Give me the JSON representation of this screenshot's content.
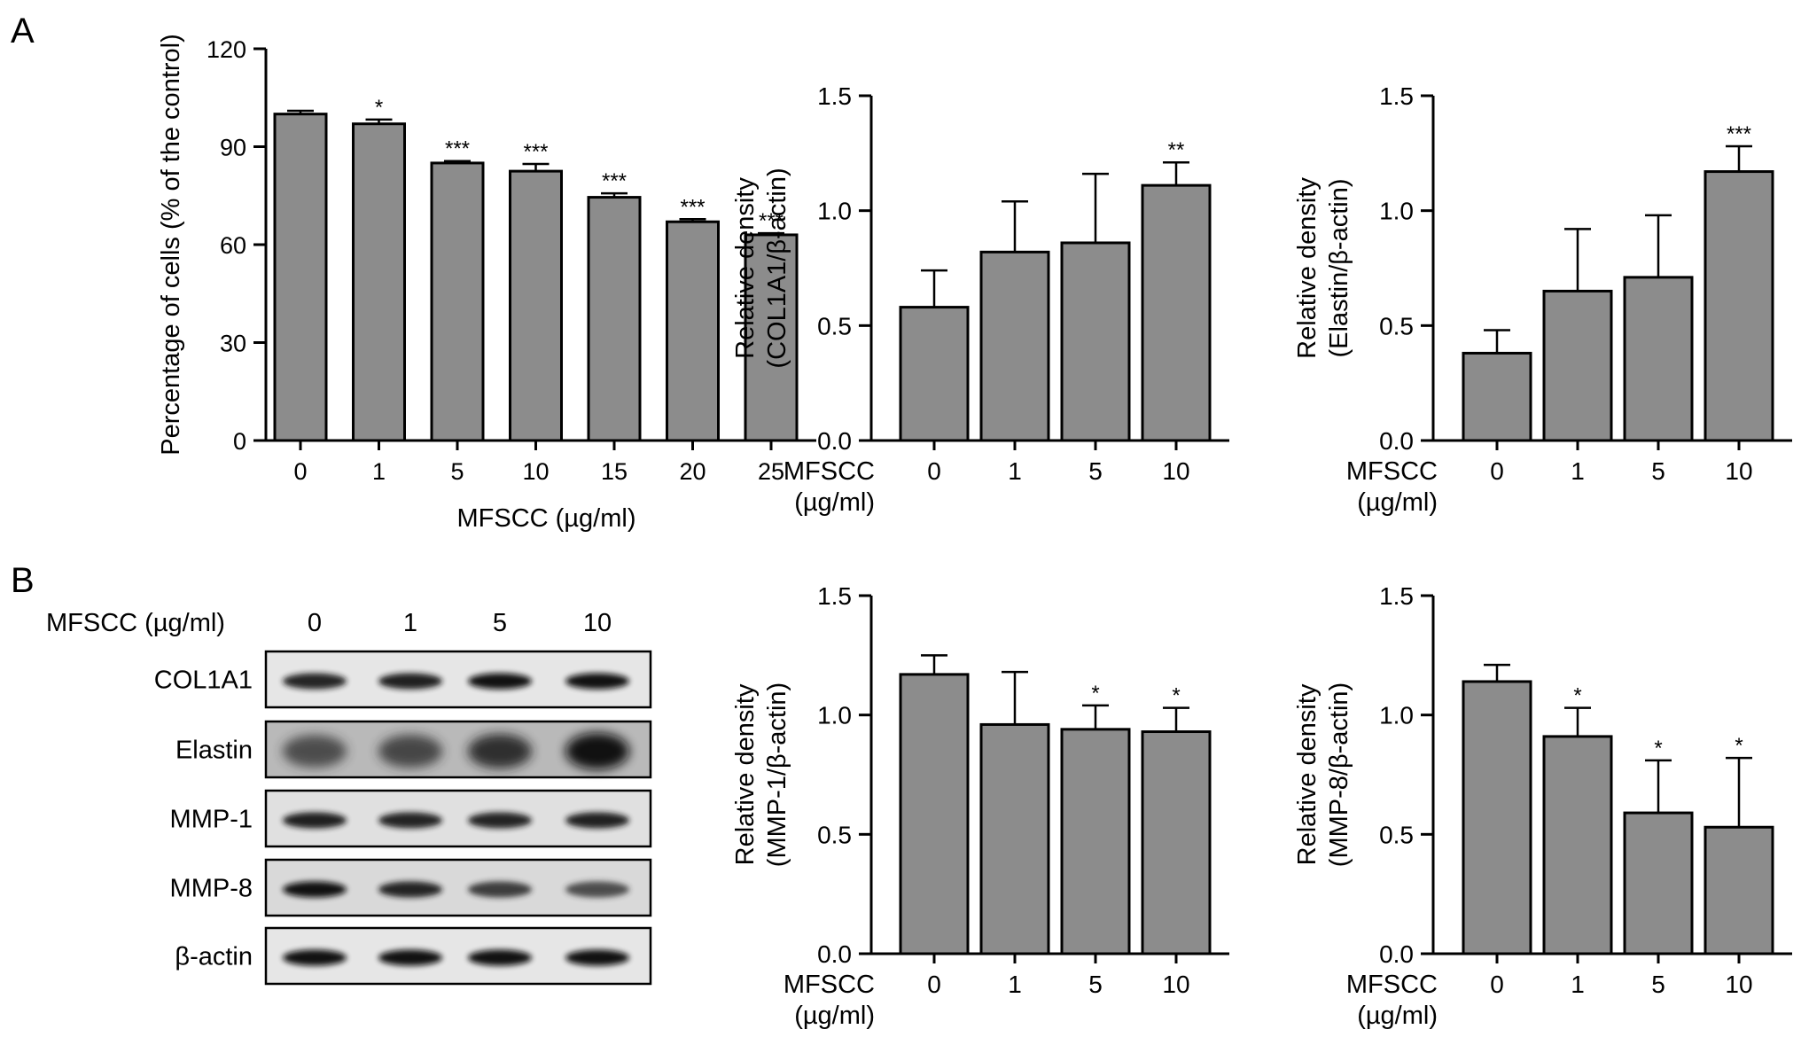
{
  "panel_labels": [
    "A",
    "B"
  ],
  "chart_data": [
    {
      "id": "viability",
      "type": "bar",
      "categories": [
        "0",
        "1",
        "5",
        "10",
        "15",
        "20",
        "25"
      ],
      "values": [
        100,
        97,
        85,
        82.5,
        74.5,
        67,
        63
      ],
      "errors": [
        1,
        1.3,
        0.6,
        2.2,
        1.2,
        0.8,
        0.5
      ],
      "significance": [
        "",
        "*",
        "***",
        "***",
        "***",
        "***",
        "***"
      ],
      "ylabel": "Percentage of cells (% of the control)",
      "xlabel": "MFSCC (µg/ml)",
      "ylim": [
        0,
        120
      ],
      "yticks": [
        0,
        30,
        60,
        90,
        120
      ],
      "bar_color": "#8c8c8c"
    },
    {
      "id": "col1a1",
      "type": "bar",
      "categories": [
        "0",
        "1",
        "5",
        "10"
      ],
      "values": [
        0.58,
        0.82,
        0.86,
        1.11
      ],
      "errors": [
        0.16,
        0.22,
        0.3,
        0.1
      ],
      "significance": [
        "",
        "",
        "",
        "**"
      ],
      "ylabel_lines": [
        "Relative density",
        "(COL1A1/β-actin)"
      ],
      "xlabel_lines": [
        "MFSCC",
        "(µg/ml)"
      ],
      "ylim": [
        0,
        1.5
      ],
      "yticks": [
        "0.0",
        "0.5",
        "1.0",
        "1.5"
      ],
      "bar_color": "#8c8c8c"
    },
    {
      "id": "elastin",
      "type": "bar",
      "categories": [
        "0",
        "1",
        "5",
        "10"
      ],
      "values": [
        0.38,
        0.65,
        0.71,
        1.17
      ],
      "errors": [
        0.1,
        0.27,
        0.27,
        0.11
      ],
      "significance": [
        "",
        "",
        "",
        "***"
      ],
      "ylabel_lines": [
        "Relative density",
        "(Elastin/β-actin)"
      ],
      "xlabel_lines": [
        "MFSCC",
        "(µg/ml)"
      ],
      "ylim": [
        0,
        1.5
      ],
      "yticks": [
        "0.0",
        "0.5",
        "1.0",
        "1.5"
      ],
      "bar_color": "#8c8c8c"
    },
    {
      "id": "mmp1",
      "type": "bar",
      "categories": [
        "0",
        "1",
        "5",
        "10"
      ],
      "values": [
        1.17,
        0.96,
        0.94,
        0.93
      ],
      "errors": [
        0.08,
        0.22,
        0.1,
        0.1
      ],
      "significance": [
        "",
        "",
        "*",
        "*"
      ],
      "ylabel_lines": [
        "Relative density",
        "(MMP-1/β-actin)"
      ],
      "xlabel_lines": [
        "MFSCC",
        "(µg/ml)"
      ],
      "ylim": [
        0,
        1.5
      ],
      "yticks": [
        "0.0",
        "0.5",
        "1.0",
        "1.5"
      ],
      "bar_color": "#8c8c8c"
    },
    {
      "id": "mmp8",
      "type": "bar",
      "categories": [
        "0",
        "1",
        "5",
        "10"
      ],
      "values": [
        1.14,
        0.91,
        0.59,
        0.53
      ],
      "errors": [
        0.07,
        0.12,
        0.22,
        0.29
      ],
      "significance": [
        "",
        "*",
        "*",
        "*"
      ],
      "ylabel_lines": [
        "Relative density",
        "(MMP-8/β-actin)"
      ],
      "xlabel_lines": [
        "MFSCC",
        "(µg/ml)"
      ],
      "ylim": [
        0,
        1.5
      ],
      "yticks": [
        "0.0",
        "0.5",
        "1.0",
        "1.5"
      ],
      "bar_color": "#8c8c8c"
    }
  ],
  "western_blot": {
    "header_label": "MFSCC (µg/ml)",
    "lanes": [
      "0",
      "1",
      "5",
      "10"
    ],
    "rows": [
      {
        "label": "COL1A1",
        "band_intensity": [
          0.85,
          0.9,
          0.95,
          0.95
        ]
      },
      {
        "label": "Elastin",
        "band_intensity": [
          0.55,
          0.6,
          0.75,
          0.95
        ]
      },
      {
        "label": "MMP-1",
        "band_intensity": [
          0.9,
          0.85,
          0.85,
          0.88
        ]
      },
      {
        "label": "MMP-8",
        "band_intensity": [
          0.95,
          0.85,
          0.7,
          0.6
        ]
      },
      {
        "label": "β-actin",
        "band_intensity": [
          0.95,
          0.95,
          0.95,
          0.95
        ]
      }
    ]
  }
}
